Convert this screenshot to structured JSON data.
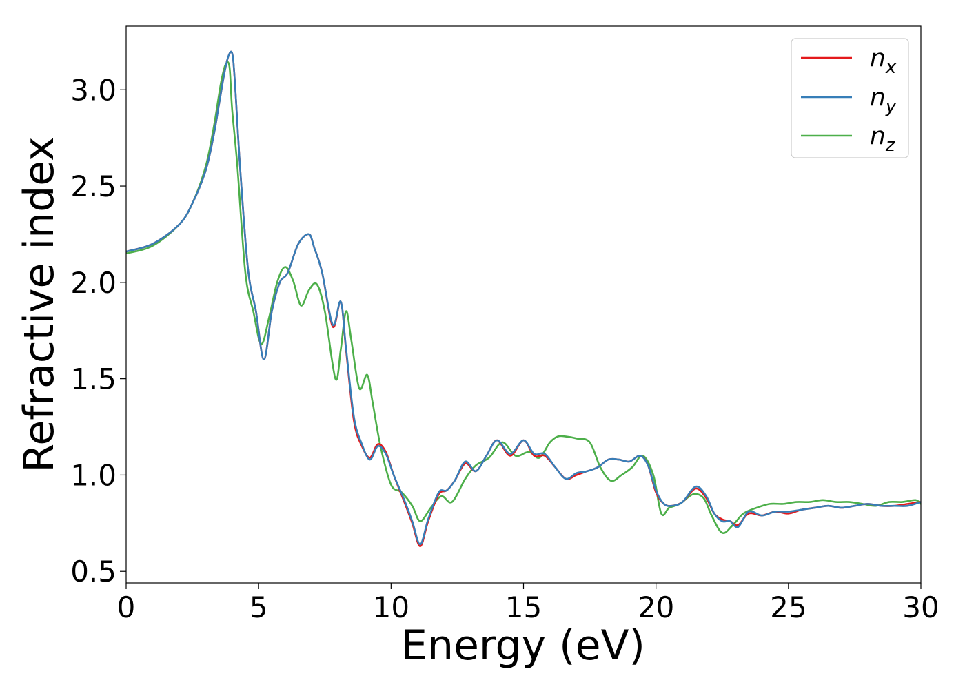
{
  "chart_data": {
    "type": "line",
    "title": "",
    "xlabel": "Energy (eV)",
    "ylabel": "Refractive index",
    "xlim": [
      0,
      30
    ],
    "ylim": [
      0.44,
      3.33
    ],
    "xticks": [
      0,
      5,
      10,
      15,
      20,
      25,
      30
    ],
    "yticks": [
      0.5,
      1.0,
      1.5,
      2.0,
      2.5,
      3.0
    ],
    "xtick_labels": [
      "0",
      "5",
      "10",
      "15",
      "20",
      "25",
      "30"
    ],
    "ytick_labels": [
      "0.5",
      "1.0",
      "1.5",
      "2.0",
      "2.5",
      "3.0"
    ],
    "grid": false,
    "legend_position": "top-right",
    "series": [
      {
        "key": "nx",
        "name_base": "n",
        "name_sub": "x",
        "color": "#e41a1c",
        "x": [
          0,
          1,
          2,
          2.5,
          3,
          3.3,
          3.5,
          3.7,
          3.85,
          4.0,
          4.1,
          4.3,
          4.6,
          4.9,
          5.2,
          5.5,
          5.8,
          6.1,
          6.5,
          6.9,
          7.1,
          7.4,
          7.8,
          8.1,
          8.3,
          8.6,
          8.9,
          9.2,
          9.5,
          9.8,
          10.1,
          10.5,
          10.8,
          11.1,
          11.4,
          11.8,
          12.1,
          12.4,
          12.8,
          13.2,
          13.6,
          14.0,
          14.5,
          15.0,
          15.4,
          15.8,
          16.2,
          16.6,
          17.0,
          17.4,
          17.8,
          18.2,
          18.6,
          19.0,
          19.4,
          19.7,
          20.0,
          20.3,
          20.6,
          21.0,
          21.5,
          21.9,
          22.2,
          22.5,
          22.8,
          23.1,
          23.5,
          24.0,
          24.5,
          25.0,
          25.5,
          26.0,
          26.5,
          27.0,
          27.5,
          28.0,
          28.5,
          29.0,
          29.5,
          30.0
        ],
        "y": [
          2.16,
          2.2,
          2.3,
          2.41,
          2.58,
          2.76,
          2.92,
          3.08,
          3.17,
          3.19,
          3.05,
          2.6,
          2.07,
          1.85,
          1.6,
          1.85,
          2.0,
          2.05,
          2.2,
          2.25,
          2.18,
          2.05,
          1.77,
          1.9,
          1.65,
          1.28,
          1.15,
          1.09,
          1.16,
          1.12,
          1.0,
          0.86,
          0.75,
          0.63,
          0.76,
          0.9,
          0.92,
          0.97,
          1.06,
          1.02,
          1.1,
          1.18,
          1.1,
          1.18,
          1.1,
          1.1,
          1.04,
          0.98,
          1.0,
          1.02,
          1.04,
          1.08,
          1.08,
          1.07,
          1.1,
          1.05,
          0.91,
          0.85,
          0.84,
          0.86,
          0.93,
          0.88,
          0.8,
          0.77,
          0.76,
          0.74,
          0.8,
          0.79,
          0.81,
          0.8,
          0.82,
          0.83,
          0.84,
          0.83,
          0.84,
          0.85,
          0.84,
          0.84,
          0.85,
          0.86
        ]
      },
      {
        "key": "ny",
        "name_base": "n",
        "name_sub": "y",
        "color": "#377eb8",
        "x": [
          0,
          1,
          2,
          2.5,
          3,
          3.3,
          3.5,
          3.7,
          3.85,
          4.0,
          4.1,
          4.3,
          4.6,
          4.9,
          5.2,
          5.5,
          5.8,
          6.1,
          6.5,
          6.9,
          7.1,
          7.4,
          7.8,
          8.1,
          8.3,
          8.6,
          8.9,
          9.2,
          9.5,
          9.8,
          10.1,
          10.5,
          10.8,
          11.1,
          11.4,
          11.8,
          12.1,
          12.4,
          12.8,
          13.2,
          13.6,
          14.0,
          14.5,
          15.0,
          15.4,
          15.8,
          16.2,
          16.6,
          17.0,
          17.4,
          17.8,
          18.2,
          18.6,
          19.0,
          19.4,
          19.7,
          20.0,
          20.3,
          20.6,
          21.0,
          21.5,
          21.9,
          22.2,
          22.5,
          22.8,
          23.1,
          23.5,
          24.0,
          24.5,
          25.0,
          25.5,
          26.0,
          26.5,
          27.0,
          27.5,
          28.0,
          28.5,
          29.0,
          29.5,
          30.0
        ],
        "y": [
          2.16,
          2.2,
          2.3,
          2.41,
          2.58,
          2.76,
          2.92,
          3.08,
          3.17,
          3.19,
          3.05,
          2.6,
          2.07,
          1.85,
          1.6,
          1.85,
          2.0,
          2.05,
          2.2,
          2.25,
          2.18,
          2.05,
          1.78,
          1.9,
          1.66,
          1.3,
          1.16,
          1.08,
          1.15,
          1.11,
          1.0,
          0.87,
          0.76,
          0.64,
          0.77,
          0.91,
          0.92,
          0.97,
          1.07,
          1.02,
          1.1,
          1.18,
          1.11,
          1.18,
          1.11,
          1.11,
          1.04,
          0.98,
          1.01,
          1.02,
          1.04,
          1.08,
          1.08,
          1.07,
          1.1,
          1.05,
          0.92,
          0.85,
          0.84,
          0.86,
          0.94,
          0.89,
          0.8,
          0.76,
          0.76,
          0.73,
          0.81,
          0.79,
          0.81,
          0.81,
          0.82,
          0.83,
          0.84,
          0.83,
          0.84,
          0.85,
          0.84,
          0.84,
          0.84,
          0.86
        ]
      },
      {
        "key": "nz",
        "name_base": "n",
        "name_sub": "z",
        "color": "#4daf4a",
        "x": [
          0,
          1,
          2,
          2.5,
          3,
          3.3,
          3.5,
          3.6,
          3.75,
          3.9,
          4.0,
          4.2,
          4.5,
          4.8,
          5.1,
          5.4,
          5.7,
          6.0,
          6.3,
          6.6,
          6.9,
          7.2,
          7.5,
          7.9,
          8.1,
          8.3,
          8.5,
          8.8,
          9.1,
          9.3,
          9.6,
          10.0,
          10.4,
          10.8,
          11.1,
          11.5,
          11.9,
          12.3,
          12.8,
          13.2,
          13.7,
          14.2,
          14.7,
          15.2,
          15.6,
          16.0,
          16.3,
          16.6,
          17.0,
          17.5,
          17.9,
          18.3,
          18.7,
          19.1,
          19.5,
          19.9,
          20.2,
          20.5,
          20.9,
          21.4,
          21.8,
          22.1,
          22.5,
          22.9,
          23.3,
          23.8,
          24.3,
          24.8,
          25.3,
          25.8,
          26.3,
          26.8,
          27.3,
          27.8,
          28.3,
          28.8,
          29.3,
          29.8,
          30.0
        ],
        "y": [
          2.15,
          2.19,
          2.3,
          2.41,
          2.6,
          2.8,
          2.97,
          3.05,
          3.13,
          3.12,
          2.9,
          2.6,
          2.05,
          1.85,
          1.68,
          1.82,
          2.0,
          2.08,
          2.01,
          1.88,
          1.96,
          1.99,
          1.85,
          1.5,
          1.65,
          1.85,
          1.7,
          1.45,
          1.52,
          1.38,
          1.15,
          0.95,
          0.91,
          0.84,
          0.76,
          0.83,
          0.89,
          0.86,
          0.98,
          1.05,
          1.09,
          1.17,
          1.1,
          1.12,
          1.09,
          1.17,
          1.2,
          1.2,
          1.19,
          1.17,
          1.04,
          0.97,
          1.0,
          1.04,
          1.1,
          1.0,
          0.8,
          0.83,
          0.85,
          0.9,
          0.88,
          0.79,
          0.7,
          0.74,
          0.8,
          0.83,
          0.85,
          0.85,
          0.86,
          0.86,
          0.87,
          0.86,
          0.86,
          0.85,
          0.84,
          0.86,
          0.86,
          0.87,
          0.85
        ]
      }
    ]
  }
}
